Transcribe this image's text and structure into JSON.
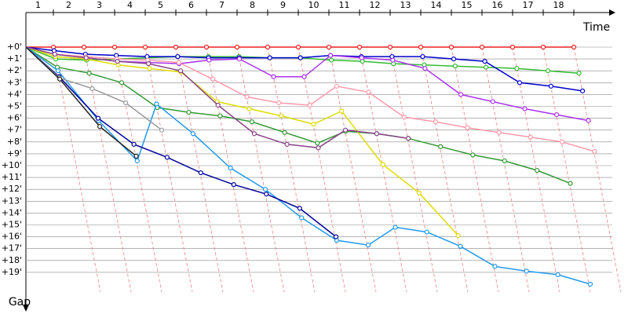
{
  "chart_data": {
    "type": "line",
    "x_label": "Time",
    "y_label": "Gap",
    "categories": [
      "1",
      "2",
      "3",
      "4",
      "5",
      "6",
      "7",
      "8",
      "9",
      "10",
      "11",
      "12",
      "13",
      "14",
      "15",
      "16",
      "17",
      "18"
    ],
    "ylim": [
      0,
      20
    ],
    "yticks": [
      {
        "value": 0,
        "label": "+0'"
      },
      {
        "value": 1,
        "label": "+1'"
      },
      {
        "value": 2,
        "label": "+2'"
      },
      {
        "value": 3,
        "label": "+3'"
      },
      {
        "value": 4,
        "label": "+4'"
      },
      {
        "value": 5,
        "label": "+5'"
      },
      {
        "value": 6,
        "label": "+6'"
      },
      {
        "value": 7,
        "label": "+7'"
      },
      {
        "value": 8,
        "label": "+8'"
      },
      {
        "value": 9,
        "label": "+9'"
      },
      {
        "value": 10,
        "label": "+10'"
      },
      {
        "value": 11,
        "label": "+11'"
      },
      {
        "value": 12,
        "label": "+12'"
      },
      {
        "value": 13,
        "label": "+13'"
      },
      {
        "value": 14,
        "label": "+14'"
      },
      {
        "value": 15,
        "label": "+15'"
      },
      {
        "value": 16,
        "label": "+16'"
      },
      {
        "value": 17,
        "label": "+17'"
      },
      {
        "value": 18,
        "label": "+18'"
      },
      {
        "value": 19,
        "label": "+19'"
      }
    ],
    "grid": true,
    "series": [
      {
        "color": "#ee2222",
        "values": [
          0,
          0,
          0,
          0,
          0,
          0,
          0,
          0,
          0,
          0,
          0,
          0,
          0,
          0,
          0,
          0,
          0,
          0
        ]
      },
      {
        "color": "#33bb33",
        "values": [
          1.0,
          1.1,
          1.0,
          0.9,
          0.8,
          0.8,
          0.8,
          0.9,
          0.9,
          1.1,
          1.2,
          1.4,
          1.5,
          1.6,
          1.7,
          1.8,
          2.0,
          2.2
        ]
      },
      {
        "color": "#0000cc",
        "values": [
          0.3,
          0.6,
          0.7,
          0.8,
          0.8,
          0.9,
          0.9,
          0.9,
          0.9,
          0.7,
          0.8,
          0.8,
          0.8,
          1.0,
          1.2,
          3.0,
          3.3,
          3.7
        ]
      },
      {
        "color": "#aa33ee",
        "values": [
          0.6,
          0.9,
          1.2,
          1.3,
          1.4,
          1.1,
          1.0,
          2.5,
          2.5,
          0.7,
          0.9,
          1.1,
          1.8,
          4.0,
          4.6,
          5.2,
          5.7,
          6.2
        ]
      },
      {
        "color": "#ff99aa",
        "values": [
          0.6,
          0.8,
          1.0,
          1.1,
          1.3,
          2.7,
          4.2,
          4.7,
          4.9,
          3.3,
          3.8,
          5.9,
          6.3,
          6.8,
          7.2,
          7.6,
          8.0,
          8.8
        ]
      },
      {
        "color": "#339933",
        "values": [
          1.7,
          2.2,
          3.0,
          5.1,
          5.5,
          5.8,
          6.3,
          7.2,
          8.1,
          7.1,
          7.3,
          7.7,
          8.4,
          9.1,
          9.6,
          10.4,
          11.5,
          null
        ]
      },
      {
        "color": "#dddd00",
        "values": [
          0.8,
          1.0,
          1.5,
          1.8,
          2.1,
          4.6,
          5.2,
          5.8,
          6.5,
          5.4,
          9.9,
          12.3,
          15.9,
          null,
          null,
          null,
          null,
          null
        ]
      },
      {
        "color": "#884488",
        "values": [
          0.6,
          0.9,
          1.2,
          1.4,
          2.0,
          4.9,
          7.3,
          8.2,
          8.5,
          7.0,
          7.3,
          7.7,
          null,
          null,
          null,
          null,
          null,
          null
        ]
      },
      {
        "color": "#2299ee",
        "values": [
          2.0,
          6.2,
          9.6,
          4.8,
          7.3,
          10.2,
          12.0,
          14.4,
          16.3,
          16.7,
          15.2,
          15.6,
          16.8,
          18.5,
          18.9,
          19.2,
          20.0,
          null
        ]
      },
      {
        "color": "#000099",
        "values": [
          2.5,
          6.0,
          8.2,
          9.3,
          10.6,
          11.6,
          12.4,
          13.6,
          16.0,
          null,
          null,
          null,
          null,
          null,
          null,
          null,
          null,
          null
        ]
      },
      {
        "color": "#999999",
        "values": [
          2.6,
          3.5,
          4.7,
          7.0,
          null,
          null,
          null,
          null,
          null,
          null,
          null,
          null,
          null,
          null,
          null,
          null,
          null,
          null
        ]
      },
      {
        "color": "#222222",
        "values": [
          2.7,
          6.7,
          9.2,
          null,
          null,
          null,
          null,
          null,
          null,
          null,
          null,
          null,
          null,
          null,
          null,
          null,
          null,
          null
        ]
      }
    ]
  }
}
